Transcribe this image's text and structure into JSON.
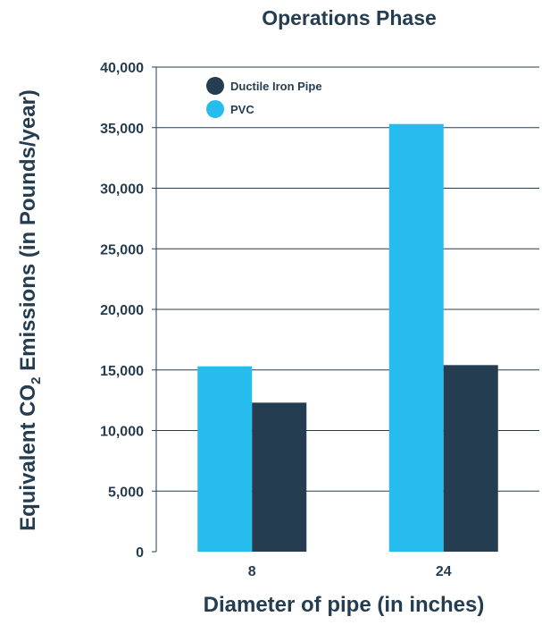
{
  "chart_data": {
    "type": "bar",
    "title": "Operations Phase",
    "xlabel": "Diameter of pipe (in inches)",
    "ylabel": {
      "prefix": "Equivalent CO",
      "subscript": "2",
      "suffix": " Emissions (in Pounds/year)"
    },
    "categories": [
      "8",
      "24"
    ],
    "series": [
      {
        "name": "PVC",
        "values": [
          15300,
          35300
        ],
        "color": "#27bcee"
      },
      {
        "name": "Ductile Iron Pipe",
        "values": [
          12300,
          15400
        ],
        "color": "#253d50"
      }
    ],
    "legend_order": [
      "Ductile Iron Pipe",
      "PVC"
    ],
    "legend_position": "top-left",
    "ylim": [
      0,
      40000
    ],
    "yticks": [
      0,
      5000,
      10000,
      15000,
      20000,
      25000,
      30000,
      35000,
      40000
    ],
    "ytick_labels": [
      "0",
      "5,000",
      "10,000",
      "15,000",
      "20,000",
      "25,000",
      "30,000",
      "35,000",
      "40,000"
    ],
    "grid": true,
    "colors": {
      "text": "#253d50",
      "grid": "#253d50"
    }
  }
}
